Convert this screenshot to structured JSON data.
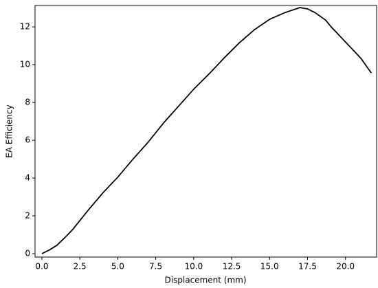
{
  "chart_data": {
    "type": "line",
    "xlabel": "Displacement (mm)",
    "ylabel": "EA Efficiency",
    "x": [
      0,
      0.5,
      1,
      1.5,
      2,
      2.5,
      3,
      4,
      5,
      6,
      7,
      8,
      9,
      10,
      11,
      12,
      13,
      14,
      15,
      16,
      17,
      17.5,
      18,
      18.7,
      19,
      20,
      21,
      21.7
    ],
    "series": [
      {
        "name": "EA Efficiency",
        "color": "#000000",
        "values": [
          0,
          0.2,
          0.45,
          0.84,
          1.25,
          1.75,
          2.25,
          3.2,
          4.05,
          5.0,
          5.9,
          6.9,
          7.8,
          8.7,
          9.5,
          10.35,
          11.15,
          11.85,
          12.4,
          12.75,
          13.02,
          12.95,
          12.75,
          12.35,
          12.05,
          11.2,
          10.35,
          9.56
        ]
      }
    ],
    "xlim": [
      -0.45,
      22.05
    ],
    "ylim": [
      -0.18,
      13.13
    ],
    "xticks": [
      {
        "value": 0,
        "label": "0.0"
      },
      {
        "value": 2.5,
        "label": "2.5"
      },
      {
        "value": 5,
        "label": "5.0"
      },
      {
        "value": 7.5,
        "label": "7.5"
      },
      {
        "value": 10,
        "label": "10.0"
      },
      {
        "value": 12.5,
        "label": "12.5"
      },
      {
        "value": 15,
        "label": "15.0"
      },
      {
        "value": 17.5,
        "label": "17.5"
      },
      {
        "value": 20,
        "label": "20.0"
      }
    ],
    "yticks": [
      0,
      2,
      4,
      6,
      8,
      10,
      12
    ],
    "grid": false
  }
}
